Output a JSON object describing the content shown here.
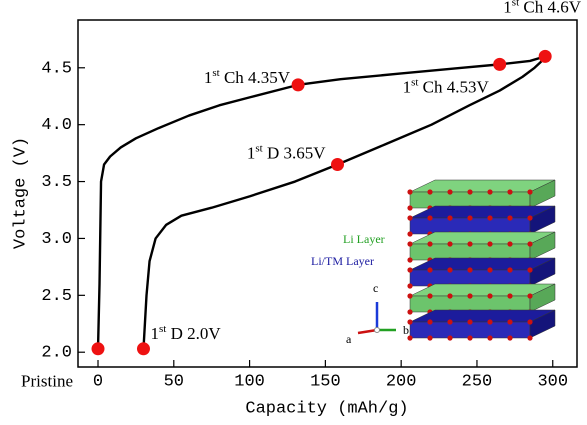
{
  "chart_data": {
    "type": "line",
    "xlabel": "Capacity (mAh/g)",
    "ylabel": "Voltage (V)",
    "x": [
      0,
      1,
      2,
      4,
      8,
      15,
      25,
      40,
      60,
      80,
      100,
      132,
      160,
      200,
      240,
      265,
      285,
      295,
      292,
      288,
      280,
      265,
      245,
      220,
      190,
      158,
      130,
      100,
      75,
      55,
      45,
      38,
      34,
      32,
      30
    ],
    "values": [
      2.03,
      2.6,
      3.5,
      3.65,
      3.72,
      3.8,
      3.88,
      3.97,
      4.08,
      4.17,
      4.24,
      4.35,
      4.4,
      4.45,
      4.5,
      4.53,
      4.56,
      4.6,
      4.55,
      4.5,
      4.42,
      4.3,
      4.17,
      4.0,
      3.83,
      3.65,
      3.5,
      3.37,
      3.27,
      3.2,
      3.12,
      3.0,
      2.8,
      2.5,
      2.03
    ],
    "color": "#000000",
    "points": [
      {
        "x": 0,
        "y": 2.03,
        "label": "Pristine"
      },
      {
        "x": 132,
        "y": 4.35,
        "ordinal": "1",
        "suffix": "st",
        "text": " Ch 4.35V"
      },
      {
        "x": 265,
        "y": 4.53,
        "ordinal": "1",
        "suffix": "st",
        "text": " Ch 4.53V"
      },
      {
        "x": 295,
        "y": 4.6,
        "ordinal": "1",
        "suffix": "st",
        "text": " Ch 4.6V"
      },
      {
        "x": 158,
        "y": 3.65,
        "ordinal": "1",
        "suffix": "st",
        "text": " D 3.65V"
      },
      {
        "x": 30,
        "y": 2.03,
        "ordinal": "1",
        "suffix": "st",
        "text": " D 2.0V"
      }
    ],
    "point_color": "#ee1111",
    "xlim": [
      -13.2,
      316
    ],
    "ylim": [
      1.87,
      4.92
    ],
    "xticks": [
      0,
      50,
      100,
      150,
      200,
      250,
      300
    ],
    "yticks": [
      {
        "value": 2,
        "label": "2.0"
      },
      2.5,
      {
        "value": 3,
        "label": "3.0"
      },
      3.5,
      {
        "value": 4,
        "label": "4.0"
      },
      4.5
    ],
    "inset": {
      "layer_labels": [
        "Li Layer",
        "Li/TM Layer"
      ],
      "axes": [
        "a",
        "b",
        "c"
      ]
    }
  }
}
